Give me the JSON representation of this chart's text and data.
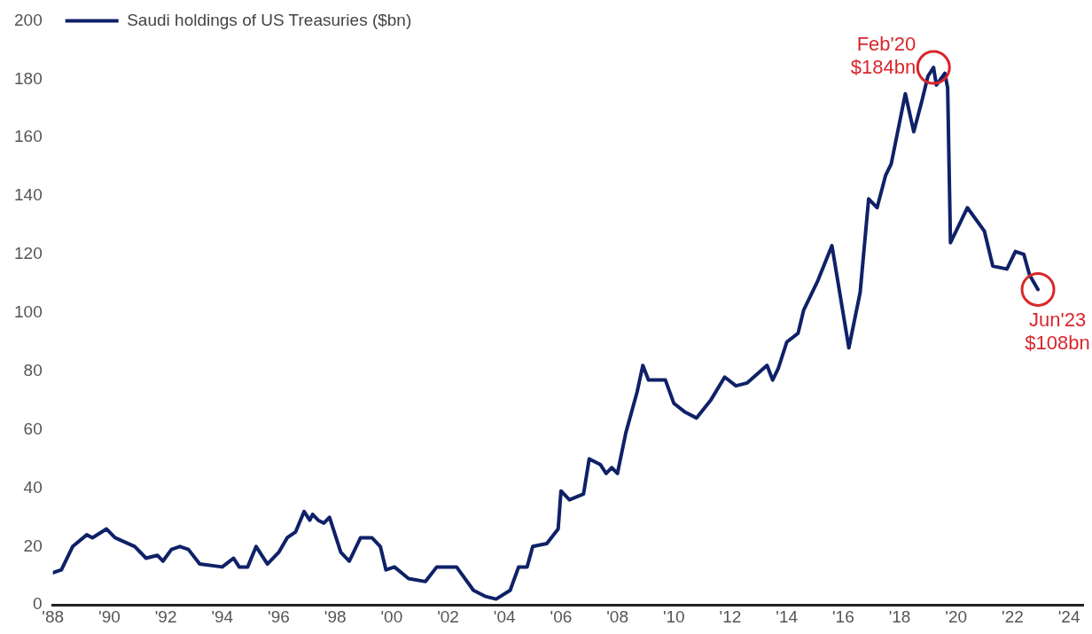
{
  "chart_data": {
    "type": "line",
    "x": [
      1988.0,
      1988.3,
      1988.7,
      1989.2,
      1989.4,
      1989.9,
      1990.2,
      1990.9,
      1991.3,
      1991.7,
      1991.9,
      1992.2,
      1992.5,
      1992.8,
      1993.2,
      1994.0,
      1994.4,
      1994.6,
      1994.9,
      1995.2,
      1995.6,
      1996.0,
      1996.3,
      1996.6,
      1996.9,
      1997.1,
      1997.2,
      1997.4,
      1997.6,
      1997.8,
      1998.2,
      1998.5,
      1998.9,
      1999.3,
      1999.6,
      1999.8,
      2000.1,
      2000.6,
      2001.2,
      2001.6,
      2002.3,
      2002.9,
      2003.3,
      2003.7,
      2004.2,
      2004.5,
      2004.8,
      2005.0,
      2005.5,
      2005.9,
      2006.0,
      2006.3,
      2006.8,
      2007.0,
      2007.4,
      2007.6,
      2007.8,
      2008.0,
      2008.3,
      2008.7,
      2008.9,
      2009.1,
      2009.7,
      2010.0,
      2010.4,
      2010.8,
      2011.3,
      2011.8,
      2012.2,
      2012.6,
      2013.3,
      2013.5,
      2013.7,
      2014.0,
      2014.4,
      2014.6,
      2015.1,
      2015.6,
      2016.2,
      2016.6,
      2016.9,
      2017.2,
      2017.5,
      2017.7,
      2018.2,
      2018.5,
      2018.8,
      2019.0,
      2019.2,
      2019.3,
      2019.6,
      2019.7,
      2019.8,
      2020.4,
      2021.0,
      2021.3,
      2021.8,
      2022.1,
      2022.4,
      2022.6,
      2022.9
    ],
    "series": [
      {
        "name": "Saudi holdings of US Treasuries ($bn)",
        "color": "#0f2167",
        "values": [
          11,
          12,
          20,
          24,
          23,
          26,
          23,
          20,
          16,
          17,
          15,
          19,
          20,
          19,
          14,
          13,
          16,
          13,
          13,
          20,
          14,
          18,
          23,
          25,
          32,
          29,
          31,
          29,
          28,
          30,
          18,
          15,
          23,
          23,
          20,
          12,
          13,
          9,
          8,
          13,
          13,
          5,
          3,
          2,
          5,
          13,
          13,
          20,
          21,
          26,
          39,
          36,
          38,
          50,
          48,
          45,
          47,
          45,
          59,
          73,
          82,
          77,
          77,
          69,
          66,
          64,
          70,
          78,
          75,
          76,
          82,
          77,
          81,
          90,
          93,
          101,
          111,
          123,
          88,
          107,
          139,
          136,
          147,
          151,
          175,
          162,
          173,
          181,
          184,
          178,
          182,
          177,
          124,
          136,
          128,
          116,
          115,
          121,
          120,
          113,
          108
        ]
      }
    ],
    "xlim": [
      1988,
      2024.5
    ],
    "xticks": [
      {
        "value": 1988,
        "label": "'88"
      },
      {
        "value": 1990,
        "label": "'90"
      },
      {
        "value": 1992,
        "label": "'92"
      },
      {
        "value": 1994,
        "label": "'94"
      },
      {
        "value": 1996,
        "label": "'96"
      },
      {
        "value": 1998,
        "label": "'98"
      },
      {
        "value": 2000,
        "label": "'00"
      },
      {
        "value": 2002,
        "label": "'02"
      },
      {
        "value": 2004,
        "label": "'04"
      },
      {
        "value": 2006,
        "label": "'06"
      },
      {
        "value": 2008,
        "label": "'08"
      },
      {
        "value": 2010,
        "label": "'10"
      },
      {
        "value": 2012,
        "label": "'12"
      },
      {
        "value": 2014,
        "label": "'14"
      },
      {
        "value": 2016,
        "label": "'16"
      },
      {
        "value": 2018,
        "label": "'18"
      },
      {
        "value": 2020,
        "label": "'20"
      },
      {
        "value": 2022,
        "label": "'22"
      },
      {
        "value": 2024,
        "label": "'24"
      }
    ],
    "ylim": [
      0,
      200
    ],
    "yticks": [
      0,
      20,
      40,
      60,
      80,
      100,
      120,
      140,
      160,
      180,
      200
    ],
    "grid": false,
    "legend": "top left",
    "marker": "none",
    "line_style": "solid",
    "annotations": [
      {
        "text": "Feb'20\n$184bn",
        "x": 2019.2,
        "y": 184
      },
      {
        "text": "Jun'23\n$108bn",
        "x": 2022.9,
        "y": 108
      }
    ]
  }
}
